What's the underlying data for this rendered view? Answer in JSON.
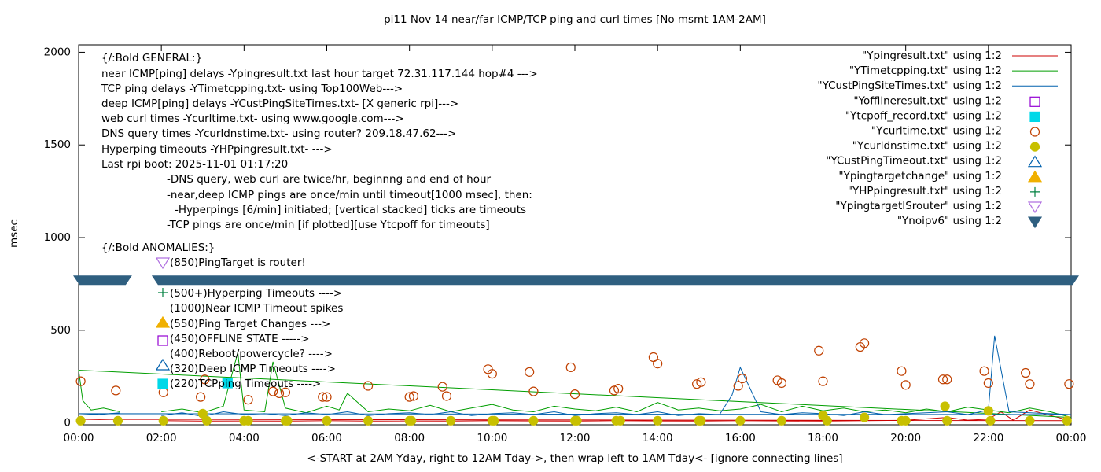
{
  "chart_data": {
    "type": "scatter",
    "title": "pi11 Nov 14  near/far ICMP/TCP ping and curl times [No msmt 1AM-2AM]",
    "x_label": "<-START at 2AM Yday, right to 12AM Tday->, then wrap left to 1AM Tday<- [ignore connecting lines]",
    "y_label": "msec",
    "xlim": [
      0,
      24
    ],
    "ylim": [
      -10,
      2040
    ],
    "xticks": [
      {
        "value": 0,
        "label": "00:00"
      },
      {
        "value": 2,
        "label": "02:00"
      },
      {
        "value": 4,
        "label": "04:00"
      },
      {
        "value": 6,
        "label": "06:00"
      },
      {
        "value": 8,
        "label": "08:00"
      },
      {
        "value": 10,
        "label": "10:00"
      },
      {
        "value": 12,
        "label": "12:00"
      },
      {
        "value": 14,
        "label": "14:00"
      },
      {
        "value": 16,
        "label": "16:00"
      },
      {
        "value": 18,
        "label": "18:00"
      },
      {
        "value": 20,
        "label": "20:00"
      },
      {
        "value": 22,
        "label": "22:00"
      },
      {
        "value": 24,
        "label": "00:00"
      }
    ],
    "yticks": [
      0,
      500,
      1000,
      1500,
      2000
    ],
    "grid": false,
    "legend": "top-right",
    "annotations": [
      "{/:Bold GENERAL:}",
      "near ICMP[ping] delays -Ypingresult.txt last hour target 72.31.117.144 hop#4 --->",
      "TCP ping delays -YTimetcpping.txt- using Top100Web--->",
      "deep ICMP[ping] delays -YCustPingSiteTimes.txt- [X generic rpi]--->",
      "web curl times -Ycurltime.txt- using www.google.com--->",
      "DNS query times -Ycurldnstime.txt- using router? 209.18.47.62--->",
      "Hyperping timeouts -YHPpingresult.txt- --->",
      "Last rpi boot: 2025-11-01 01:17:20",
      "-DNS query, web curl are twice/hr, beginnng and end of hour",
      "-near,deep ICMP pings are once/min until timeout[1000 msec], then:",
      "-Hyperpings [6/min] initiated; [vertical stacked] ticks are timeouts",
      "-TCP pings are once/min [if plotted][use Ytcpoff for timeouts]",
      "{/:Bold ANOMALIES:}",
      "(850)PingTarget is router!",
      "(500+)Hyperping Timeouts ---->",
      "(1000)Near ICMP Timeout spikes",
      "(550)Ping Target Changes --->",
      "(450)OFFLINE STATE ----->",
      "(400)Reboot/powercycle? ---->",
      "(320)Deep ICMP Timeouts ---->",
      "(220)TCPping Timeouts ---->"
    ],
    "series": [
      {
        "name": "\"Ypingresult.txt\" using 1:2",
        "color": "#cc0000",
        "marker": "line",
        "x": [
          2,
          3,
          4,
          5,
          6,
          7,
          8,
          9,
          10,
          11,
          12,
          13,
          14,
          15,
          16,
          17,
          18,
          19,
          20,
          21,
          21.5,
          22,
          22.3,
          22.6,
          23,
          23.5,
          24,
          0,
          0.5,
          1
        ],
        "values": [
          12,
          10,
          11,
          10,
          12,
          10,
          11,
          10,
          12,
          11,
          10,
          12,
          11,
          10,
          12,
          11,
          10,
          12,
          14,
          30,
          15,
          20,
          60,
          15,
          70,
          40,
          12,
          20,
          18,
          20
        ]
      },
      {
        "name": "\"YTimetcpping.txt\" using 1:2",
        "color": "#009e00",
        "marker": "line",
        "x": [
          2,
          2.5,
          3,
          3.5,
          3.85,
          4,
          4.5,
          4.7,
          5,
          5.5,
          6,
          6.3,
          6.5,
          7,
          7.5,
          8,
          8.5,
          9,
          9.5,
          10,
          10.5,
          11,
          11.5,
          12,
          12.5,
          13,
          13.5,
          14,
          14.5,
          15,
          15.5,
          16,
          16.5,
          17,
          17.5,
          18,
          18.5,
          19,
          19.5,
          20,
          20.5,
          21,
          21.5,
          22,
          22.5,
          23,
          23.5,
          24,
          0,
          0.1,
          0.3,
          0.6,
          1
        ],
        "values": [
          60,
          75,
          55,
          90,
          380,
          70,
          60,
          330,
          80,
          55,
          90,
          70,
          160,
          60,
          75,
          65,
          95,
          60,
          80,
          100,
          70,
          60,
          90,
          75,
          65,
          85,
          60,
          110,
          70,
          80,
          65,
          75,
          100,
          60,
          90,
          65,
          80,
          60,
          70,
          55,
          75,
          60,
          85,
          70,
          55,
          80,
          60,
          30,
          285,
          120,
          70,
          80,
          60
        ]
      },
      {
        "name": "\"YCustPingSiteTimes.txt\" using 1:2",
        "color": "#0060ad",
        "marker": "line",
        "x": [
          2,
          2.5,
          3,
          3.5,
          4,
          4.5,
          5,
          5.5,
          6,
          6.5,
          7,
          7.5,
          8,
          8.5,
          9,
          9.5,
          10,
          10.5,
          11,
          11.5,
          12,
          12.5,
          13,
          13.5,
          14,
          14.5,
          15,
          15.5,
          15.8,
          16,
          16.5,
          17,
          17.5,
          18,
          18.5,
          19,
          19.5,
          20,
          20.5,
          21,
          21.5,
          22,
          22.15,
          22.5,
          23,
          23.5,
          24,
          0,
          0.5,
          1
        ],
        "values": [
          40,
          55,
          35,
          60,
          45,
          50,
          40,
          55,
          45,
          60,
          40,
          50,
          55,
          45,
          60,
          40,
          50,
          55,
          45,
          60,
          40,
          50,
          55,
          45,
          60,
          40,
          50,
          45,
          150,
          300,
          60,
          45,
          55,
          50,
          40,
          60,
          45,
          50,
          55,
          60,
          45,
          70,
          470,
          60,
          55,
          50,
          45,
          50,
          45,
          55
        ]
      },
      {
        "name": "\"Yofflineresult.txt\" using 1:2",
        "color": "#9400d3",
        "marker": "square-open",
        "x": [],
        "values": []
      },
      {
        "name": "\"Ytcpoff_record.txt\" using 1:2",
        "color": "#00d8e8",
        "marker": "square",
        "x": [
          3.6
        ],
        "values": [
          215
        ]
      },
      {
        "name": "\"Ycurltime.txt\" using 1:2",
        "color": "#c04000",
        "marker": "circle-open",
        "x": [
          0.05,
          0.9,
          2.05,
          2.95,
          3.05,
          4.1,
          4.7,
          4.85,
          5.0,
          5.9,
          6.0,
          7.0,
          8.0,
          8.1,
          8.8,
          8.9,
          9.9,
          10.0,
          10.9,
          11.0,
          11.9,
          12.0,
          12.95,
          13.05,
          13.9,
          14.0,
          14.95,
          15.05,
          15.95,
          16.05,
          16.9,
          17.0,
          17.9,
          18.0,
          18.9,
          19.0,
          19.9,
          20.0,
          20.9,
          21.0,
          21.9,
          22.0,
          22.9,
          23.0,
          23.95
        ],
        "values": [
          225,
          175,
          165,
          140,
          235,
          125,
          170,
          160,
          165,
          140,
          140,
          200,
          140,
          145,
          195,
          145,
          290,
          265,
          275,
          170,
          300,
          155,
          175,
          185,
          355,
          320,
          210,
          220,
          200,
          240,
          230,
          215,
          390,
          225,
          410,
          430,
          280,
          205,
          235,
          235,
          280,
          215,
          270,
          210,
          210
        ]
      },
      {
        "name": "\"Ycurldnstime.txt\" using 1:2",
        "color": "#c8c000",
        "marker": "circle",
        "x": [
          0.05,
          0.95,
          2.05,
          3.0,
          3.1,
          4.0,
          4.1,
          5.0,
          5.05,
          6.0,
          7.0,
          8.0,
          8.05,
          9.0,
          10.0,
          10.05,
          11.0,
          12.0,
          12.05,
          13.0,
          13.1,
          14.0,
          15.0,
          15.05,
          16.0,
          17.0,
          18.0,
          18.1,
          19.0,
          19.9,
          20.0,
          20.95,
          21.0,
          22.0,
          22.05,
          23.0,
          23.9
        ],
        "values": [
          12,
          12,
          12,
          50,
          12,
          12,
          12,
          12,
          12,
          12,
          12,
          12,
          12,
          12,
          12,
          12,
          12,
          12,
          12,
          12,
          12,
          12,
          12,
          12,
          12,
          12,
          40,
          12,
          30,
          12,
          12,
          90,
          12,
          65,
          12,
          12,
          12
        ]
      },
      {
        "name": "\"YCustPingTimeout.txt\" using 1:2",
        "color": "#0060ad",
        "marker": "triangle-open",
        "x": [],
        "values": []
      },
      {
        "name": "\"Ypingtargetchange\" using 1:2",
        "color": "#f0b000",
        "marker": "triangle",
        "x": [],
        "values": []
      },
      {
        "name": "\"YHPpingresult.txt\" using 1:2",
        "color": "#008040",
        "marker": "plus",
        "x": [],
        "values": []
      },
      {
        "name": "\"YpingtargetISrouter\" using 1:2",
        "color": "#b070e0",
        "marker": "triangle-down-open",
        "x": [],
        "values": []
      },
      {
        "name": "\"Ynoipv6\" using 1:2",
        "color": "#2f5f80",
        "marker": "band",
        "x": [
          [
            0,
            1.1
          ],
          [
            1.9,
            24
          ]
        ],
        "values": [
          770,
          770
        ]
      }
    ]
  }
}
